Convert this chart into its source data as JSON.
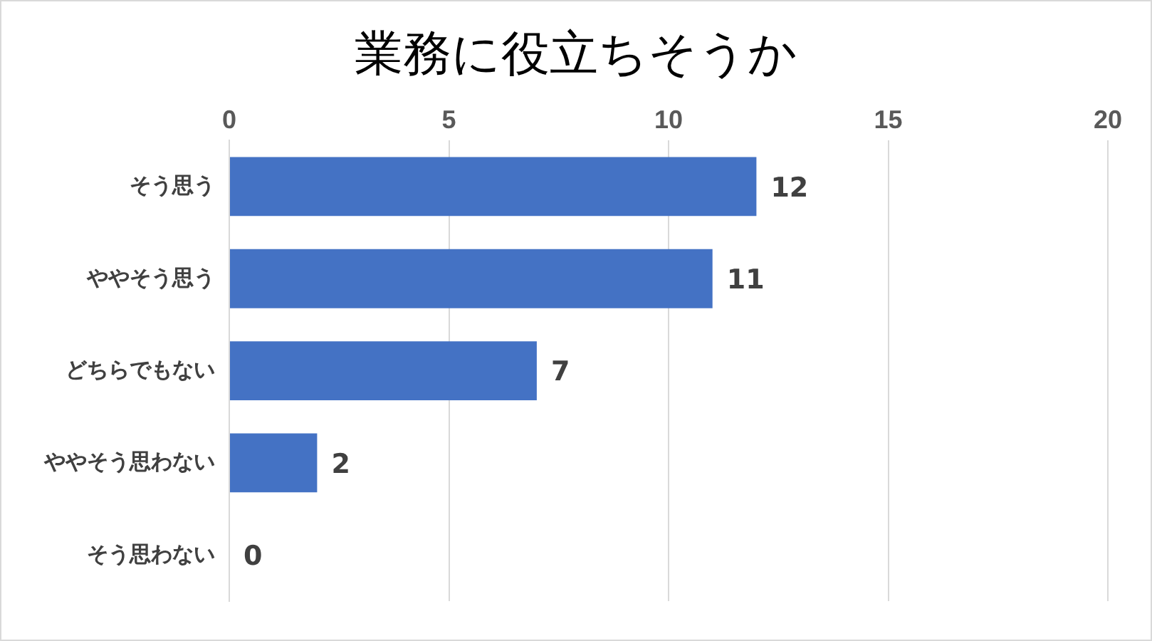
{
  "chart_data": {
    "type": "bar",
    "orientation": "horizontal",
    "title": "業務に役立ちそうか",
    "categories": [
      "そう思う",
      "ややそう思う",
      "どちらでもない",
      "ややそう思わない",
      "そう思わない"
    ],
    "values": [
      12,
      11,
      7,
      2,
      0
    ],
    "color": "#4472c4",
    "xlim": [
      0,
      20
    ],
    "xticks": [
      0,
      5,
      10,
      15,
      20
    ],
    "grid": "x",
    "data_labels": true
  }
}
